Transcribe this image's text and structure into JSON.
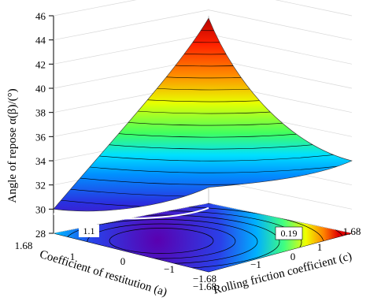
{
  "chart_data": {
    "type": "surface3d",
    "zlabel": "Angle of repose α(β)/(°)",
    "xlabel": "Coefficient of restitution (a)",
    "ylabel": "Rolling friction coefficient (c)",
    "zticks": [
      "28",
      "30",
      "32",
      "34",
      "36",
      "38",
      "40",
      "42",
      "44",
      "46"
    ],
    "xticks": [
      "1.68",
      "1",
      "0",
      "−1",
      "−1.68"
    ],
    "yticks": [
      "−1.68",
      "−1",
      "0",
      "1",
      "1.68"
    ],
    "zlim": [
      28,
      46
    ],
    "xlim": [
      -1.68,
      1.68
    ],
    "ylim": [
      -1.68,
      1.68
    ],
    "contour_labels": [
      "1.1",
      "0.19"
    ],
    "surface_corners": [
      {
        "a": 1.68,
        "c": -1.68,
        "z": 30
      },
      {
        "a": -1.68,
        "c": -1.68,
        "z": 46
      },
      {
        "a": -1.68,
        "c": 1.68,
        "z": 34
      },
      {
        "a": 1.68,
        "c": 1.68,
        "z": 31.5
      }
    ],
    "surface_center": {
      "a": 0,
      "c": 0,
      "z": 32
    }
  }
}
